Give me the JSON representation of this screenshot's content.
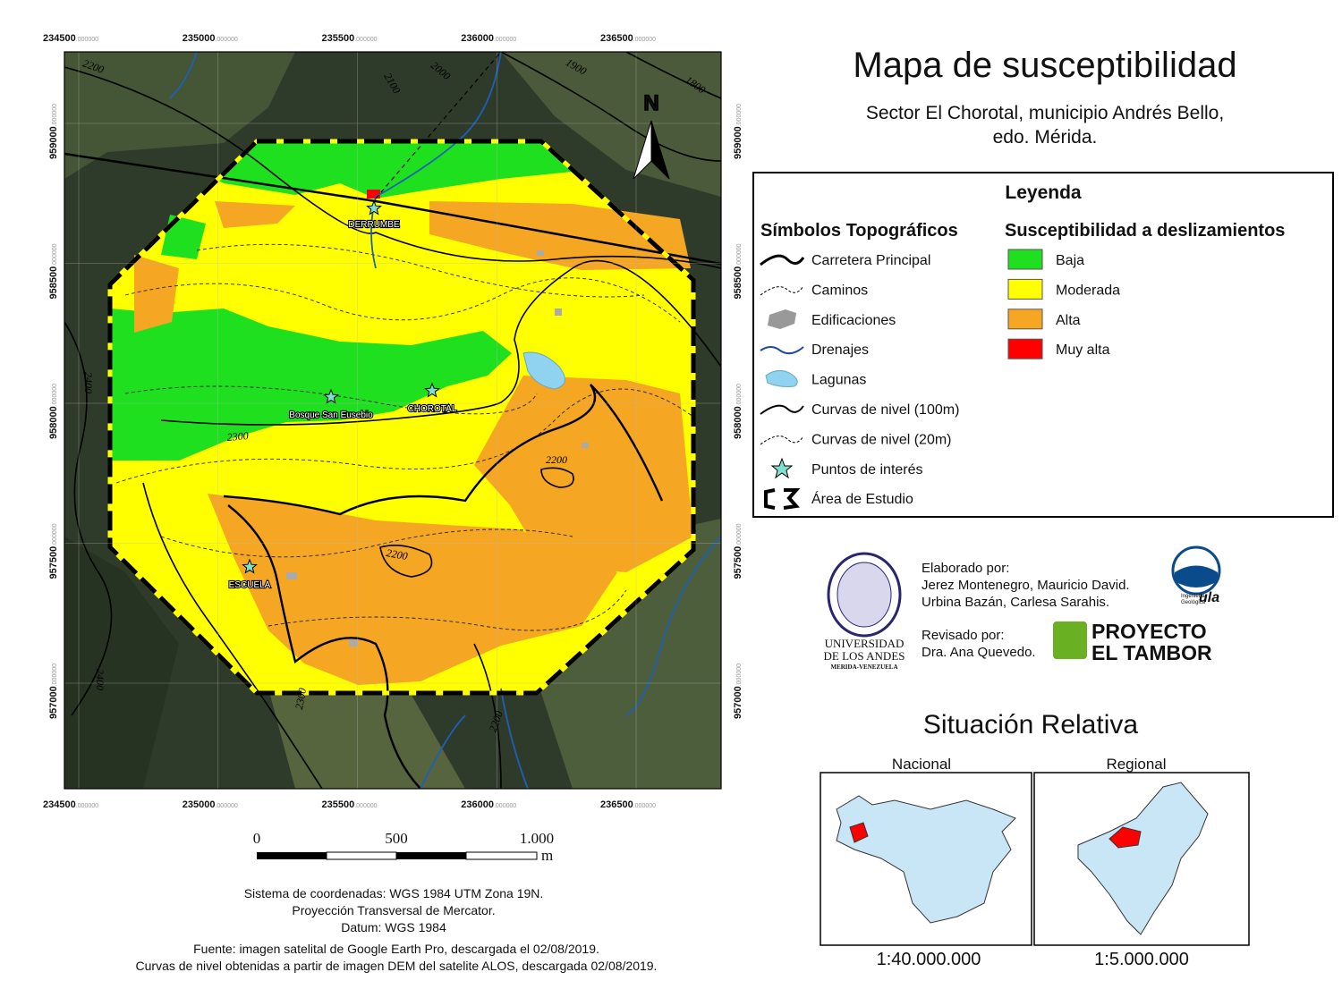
{
  "header": {
    "title": "Mapa de susceptibilidad",
    "subtitle_lines": [
      "Sector El Chorotal, municipio Andrés Bello,",
      "edo. Mérida."
    ]
  },
  "map": {
    "x_labels": [
      {
        "main": "234500",
        "fraction": ".000000"
      },
      {
        "main": "235000",
        "fraction": ".000000"
      },
      {
        "main": "235500",
        "fraction": ".000000"
      },
      {
        "main": "236000",
        "fraction": ".000000"
      },
      {
        "main": "236500",
        "fraction": ".000000"
      }
    ],
    "y_labels": [
      {
        "main": "959000",
        "fraction": ".000000"
      },
      {
        "main": "958500",
        "fraction": ".000000"
      },
      {
        "main": "958000",
        "fraction": ".000000"
      },
      {
        "main": "957500",
        "fraction": ".000000"
      },
      {
        "main": "957000",
        "fraction": ".000000"
      }
    ],
    "contour_labels": [
      "2200",
      "2100",
      "2000",
      "1900",
      "1800",
      "2400",
      "2300",
      "2200",
      "2200",
      "2300",
      "2200",
      "2400"
    ],
    "places": [
      "DERRUMBE",
      "Bosque San Eusebio",
      "CHOROTAL",
      "ESCUELA"
    ],
    "north": "N",
    "scale_bar": {
      "labels": [
        "0",
        "500",
        "1.000"
      ],
      "unit": "m"
    }
  },
  "notes": [
    "Sistema de coordenadas: WGS 1984 UTM Zona 19N.",
    "Proyección Transversal de Mercator.",
    "Datum: WGS 1984",
    "Fuente: imagen satelital de Google Earth Pro, descargada el 02/08/2019.",
    "Curvas de nivel obtenidas a partir de imagen DEM del satelite ALOS, descargada 02/08/2019."
  ],
  "legend": {
    "title": "Leyenda",
    "symbols_title": "Símbolos Topográficos",
    "symbols": [
      "Carretera Principal",
      "Caminos",
      "Edificaciones",
      "Drenajes",
      "Lagunas",
      "Curvas de nivel (100m)",
      "Curvas de nivel (20m)",
      "Puntos de interés",
      "Área de Estudio"
    ],
    "susceptibility_title": "Susceptibilidad a deslizamientos",
    "susceptibility": [
      {
        "label": "Baja",
        "color": "#1fe01f"
      },
      {
        "label": "Moderada",
        "color": "#ffff00"
      },
      {
        "label": "Alta",
        "color": "#f5a623"
      },
      {
        "label": "Muy alta",
        "color": "#ff0000"
      }
    ]
  },
  "credits": {
    "made_by_title": "Elaborado por:",
    "made_by": [
      "Jerez Montenegro, Mauricio David.",
      "Urbina Bazán, Carlesa Sarahis."
    ],
    "reviewed_title": "Revisado por:",
    "reviewed_by": "Dra. Ana Quevedo.",
    "university": [
      "UNIVERSIDAD",
      "DE LOS ANDES",
      "MERIDA-VENEZUELA"
    ],
    "project": [
      "PROYECTO",
      "EL TAMBOR"
    ],
    "ula": [
      "Ingeniería",
      "Geológica",
      "ula"
    ]
  },
  "situation": {
    "title": "Situación Relativa",
    "panels": [
      {
        "title": "Nacional",
        "scale": "1:40.000.000"
      },
      {
        "title": "Regional",
        "scale": "1:5.000.000"
      }
    ]
  }
}
